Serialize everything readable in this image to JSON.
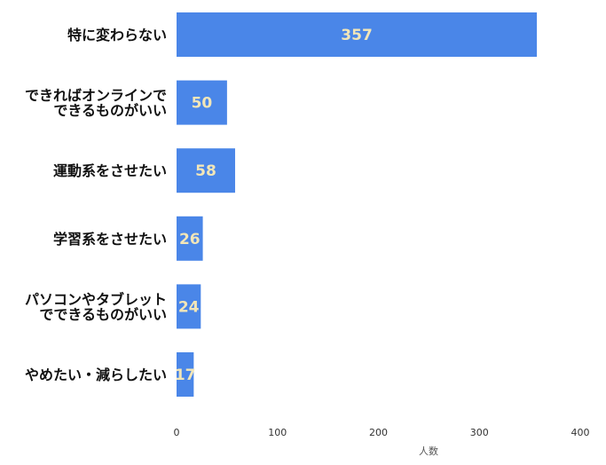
{
  "chart_data": {
    "type": "bar",
    "orientation": "horizontal",
    "categories": [
      "特に変わらない",
      "できればオンラインで\nできるものがいい",
      "運動系をさせたい",
      "学習系をさせたい",
      "パソコンやタブレット\nでできるものがいい",
      "やめたい・減らしたい"
    ],
    "values": [
      357,
      50,
      58,
      26,
      24,
      17
    ],
    "xlabel": "人数",
    "xlim": [
      0,
      400
    ],
    "xticks": [
      0,
      100,
      200,
      300,
      400
    ],
    "grid": false,
    "data_labels": true,
    "colors": {
      "bar": "#4a86e8",
      "value_label": "#f2e6b8"
    }
  }
}
